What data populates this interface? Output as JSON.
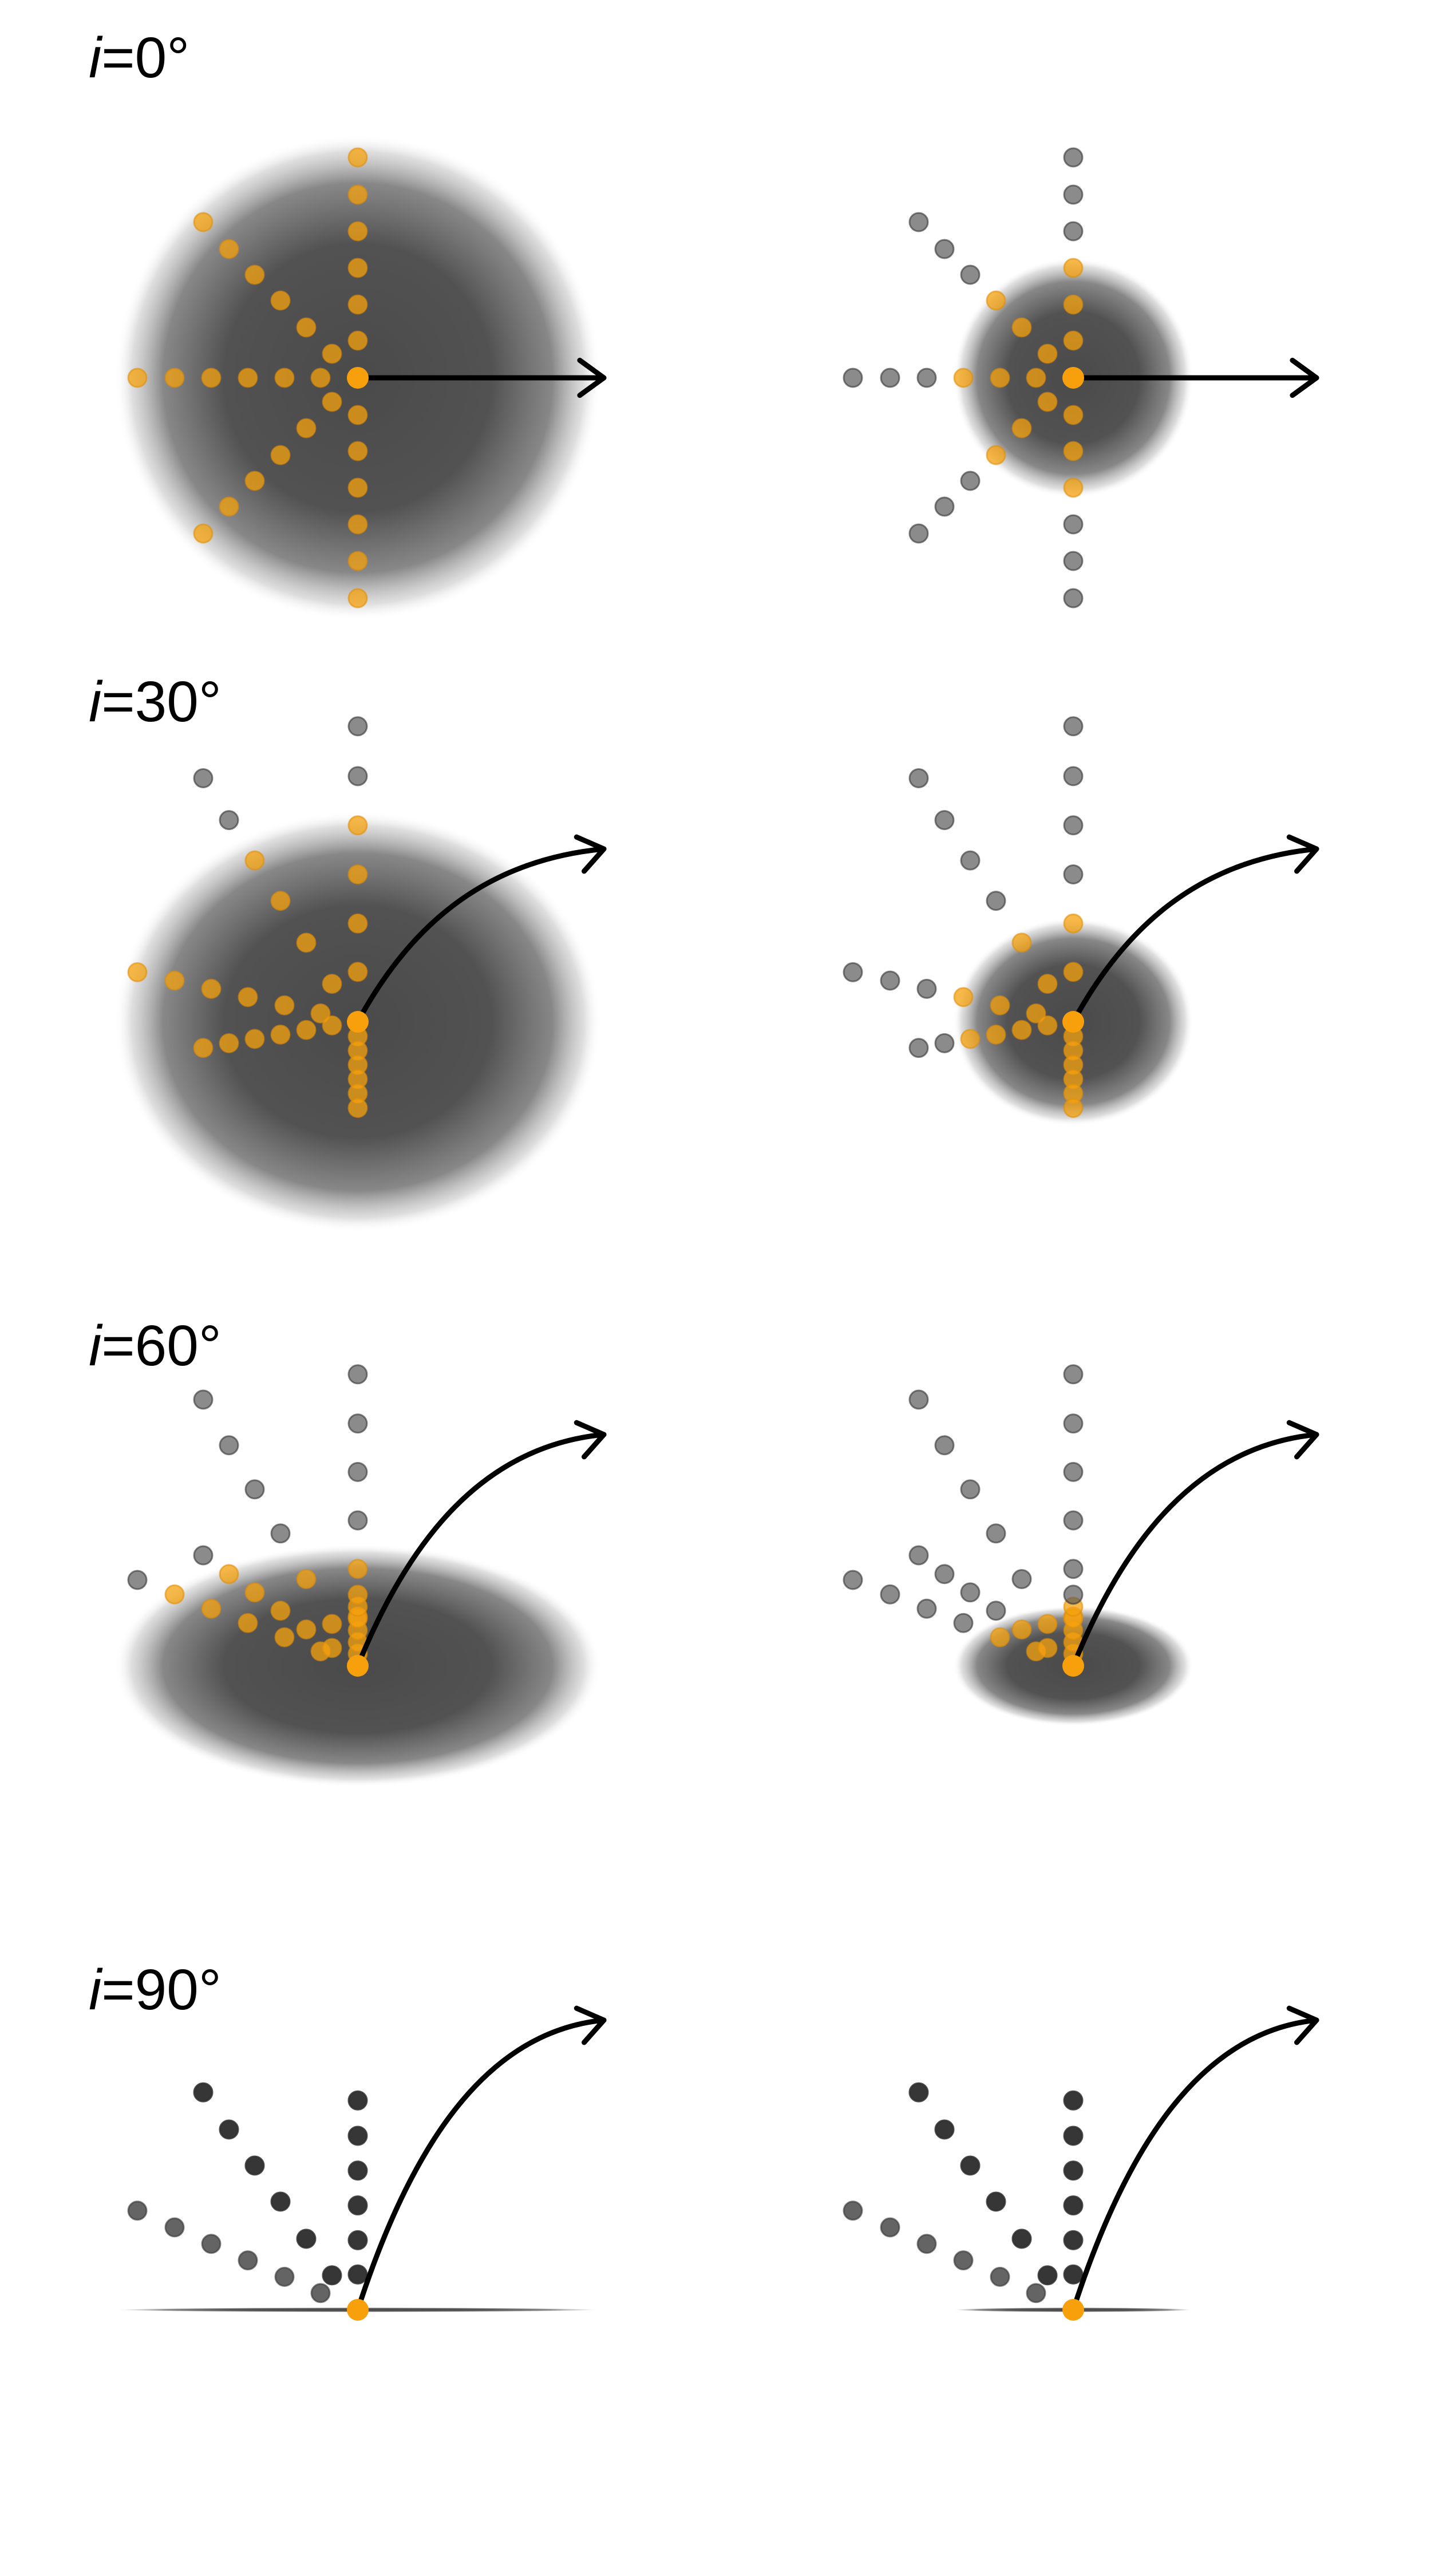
{
  "colors": {
    "background": "#ffffff",
    "disk": "#4a4a4a",
    "point_inside": "#f5a20f",
    "point_outside": "#5a5a5a",
    "point_edge": "#333333",
    "center": "#f7a00c",
    "arrow": "#000000"
  },
  "rows": [
    {
      "symbol": "i",
      "value_text": "=0°",
      "inclination_deg": 0
    },
    {
      "symbol": "i",
      "value_text": "=30°",
      "inclination_deg": 30
    },
    {
      "symbol": "i",
      "value_text": "=60°",
      "inclination_deg": 60
    },
    {
      "symbol": "i",
      "value_text": "=90°",
      "inclination_deg": 90
    }
  ],
  "columns": [
    {
      "disk_size": "large"
    },
    {
      "disk_size": "small"
    }
  ],
  "point_pattern": {
    "rays": 6,
    "description": "radial lines of sample points emanating from the center"
  }
}
